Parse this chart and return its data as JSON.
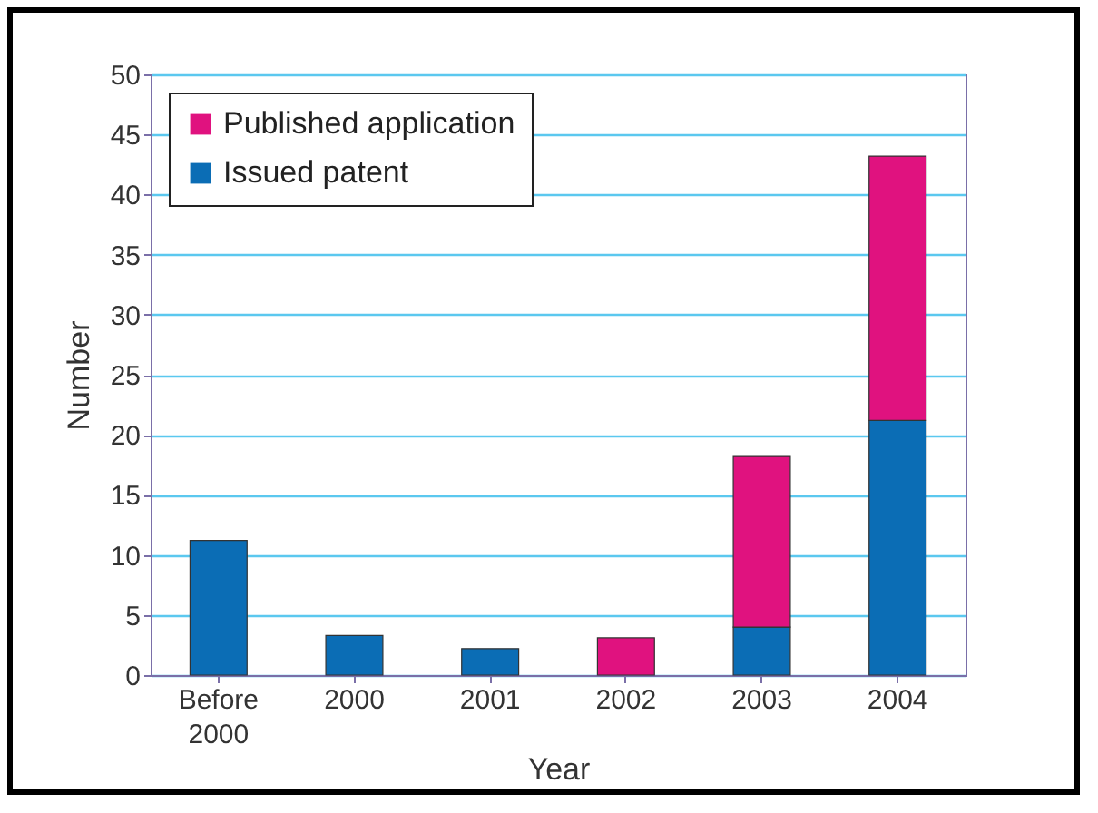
{
  "chart_data": {
    "type": "bar",
    "xlabel": "Year",
    "ylabel": "Number",
    "categories": [
      "Before 2000",
      "2000",
      "2001",
      "2002",
      "2003",
      "2004"
    ],
    "stacked": true,
    "series": [
      {
        "name": "Issued patent",
        "color": "#0b6db5",
        "values": [
          11.2,
          3.3,
          2.2,
          null,
          4,
          21.2
        ]
      },
      {
        "name": "Published application",
        "color": "#e0127f",
        "values": [
          null,
          null,
          null,
          3.1,
          14.2,
          22
        ]
      }
    ],
    "ylim": [
      0,
      50
    ],
    "yticks": [
      0,
      5,
      10,
      15,
      20,
      25,
      30,
      35,
      40,
      45,
      50
    ],
    "grid": "y",
    "legend": "top left"
  }
}
